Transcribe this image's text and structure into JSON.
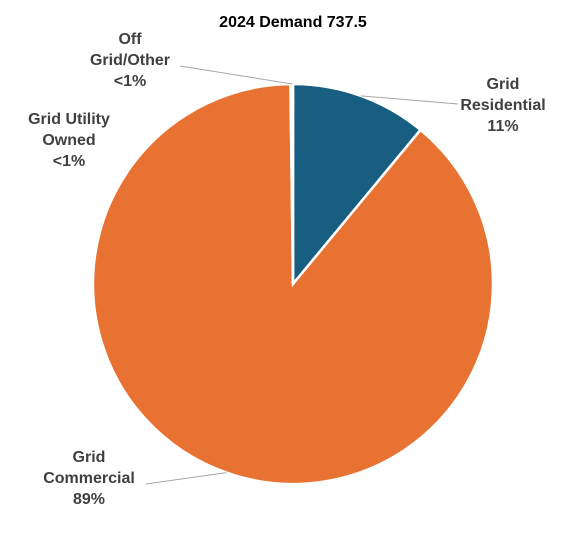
{
  "chart_data": {
    "type": "pie",
    "title": "2024 Demand 737.5",
    "slices": [
      {
        "name": "Grid Residential",
        "label_lines": [
          "Grid",
          "Residential",
          "11%"
        ],
        "value": 11,
        "color": "#175e80"
      },
      {
        "name": "Grid Commercial",
        "label_lines": [
          "Grid",
          "Commercial",
          "89%"
        ],
        "value": 88.8,
        "color": "#e87232"
      },
      {
        "name": "Grid Utility Owned",
        "label_lines": [
          "Grid Utility",
          "Owned",
          "<1%"
        ],
        "value": 0.1,
        "color": "#9aa4ad"
      },
      {
        "name": "Off Grid/Other",
        "label_lines": [
          "Off",
          "Grid/Other",
          "<1%"
        ],
        "value": 0.1,
        "color": "#3f8f5a"
      }
    ],
    "legend": "none",
    "start_angle": "12 o'clock",
    "direction": "clockwise"
  }
}
